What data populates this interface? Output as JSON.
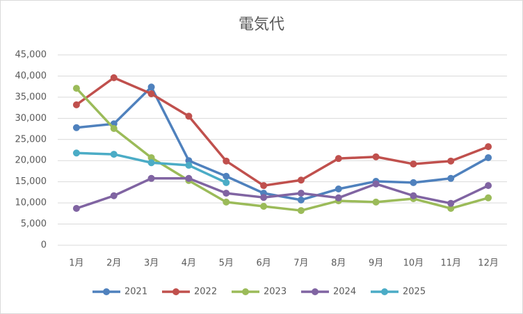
{
  "chart_data": {
    "type": "line",
    "title": "電気代",
    "categories": [
      "1月",
      "2月",
      "3月",
      "4月",
      "5月",
      "6月",
      "7月",
      "8月",
      "9月",
      "10月",
      "11月",
      "12月"
    ],
    "series": [
      {
        "name": "2021",
        "color": "#4f81bd",
        "values": [
          27800,
          28700,
          37400,
          20000,
          16300,
          12300,
          10700,
          13300,
          15100,
          14800,
          15800,
          20700
        ]
      },
      {
        "name": "2022",
        "color": "#c0504d",
        "values": [
          33200,
          39600,
          35800,
          30500,
          19900,
          14100,
          15400,
          20500,
          20900,
          19200,
          19900,
          23300
        ]
      },
      {
        "name": "2023",
        "color": "#9bbb59",
        "values": [
          37100,
          27600,
          20700,
          15300,
          10200,
          9200,
          8200,
          10500,
          10200,
          11000,
          8700,
          11200
        ]
      },
      {
        "name": "2024",
        "color": "#8064a2",
        "values": [
          8700,
          11700,
          15800,
          15800,
          12300,
          11300,
          12300,
          11200,
          14500,
          11700,
          9900,
          14100
        ]
      },
      {
        "name": "2025",
        "color": "#4bacc6",
        "values": [
          21800,
          21500,
          19500,
          18900,
          14800,
          null,
          null,
          null,
          null,
          null,
          null,
          null
        ]
      }
    ],
    "ylim": [
      0,
      45000
    ],
    "yticks": [
      0,
      {
        "value": 5000,
        "label": "5,000"
      },
      {
        "value": 10000,
        "label": "10,000"
      },
      {
        "value": 15000,
        "label": "15,000"
      },
      {
        "value": 20000,
        "label": "20,000"
      },
      {
        "value": 25000,
        "label": "25,000"
      },
      {
        "value": 30000,
        "label": "30,000"
      },
      {
        "value": 35000,
        "label": "35,000"
      },
      {
        "value": 40000,
        "label": "40,000"
      },
      {
        "value": 45000,
        "label": "45,000"
      }
    ],
    "grid": true,
    "legend": "bottom"
  }
}
